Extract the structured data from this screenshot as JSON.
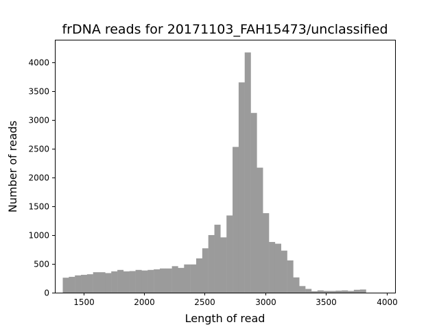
{
  "chart_data": {
    "type": "bar",
    "title": "frDNA reads for 20171103_FAH15473/unclassified",
    "xlabel": "Length of read",
    "ylabel": "Number of reads",
    "xlim": [
      1265,
      4070
    ],
    "ylim": [
      0,
      4390
    ],
    "xticks": [
      {
        "value": 1500,
        "label": "1500"
      },
      {
        "value": 2000,
        "label": "2000"
      },
      {
        "value": 2500,
        "label": "2500"
      },
      {
        "value": 3000,
        "label": "3000"
      },
      {
        "value": 3500,
        "label": "3500"
      },
      {
        "value": 4000,
        "label": "4000"
      }
    ],
    "yticks": [
      {
        "value": 0,
        "label": "0"
      },
      {
        "value": 500,
        "label": "500"
      },
      {
        "value": 1000,
        "label": "1000"
      },
      {
        "value": 1500,
        "label": "1500"
      },
      {
        "value": 2000,
        "label": "2000"
      },
      {
        "value": 2500,
        "label": "2500"
      },
      {
        "value": 3000,
        "label": "3000"
      },
      {
        "value": 3500,
        "label": "3500"
      },
      {
        "value": 4000,
        "label": "4000"
      }
    ],
    "bin_start": 1330,
    "bin_width": 50,
    "values": [
      260,
      275,
      300,
      310,
      320,
      355,
      355,
      340,
      370,
      395,
      370,
      375,
      395,
      385,
      395,
      405,
      420,
      420,
      460,
      430,
      490,
      490,
      595,
      770,
      1000,
      1180,
      960,
      1340,
      2530,
      3650,
      4170,
      3120,
      2170,
      1380,
      880,
      850,
      730,
      560,
      265,
      115,
      65,
      25,
      40,
      30,
      30,
      35,
      40,
      30,
      50,
      55
    ],
    "color": "#9b9b9b",
    "grid": false,
    "legend": false
  }
}
